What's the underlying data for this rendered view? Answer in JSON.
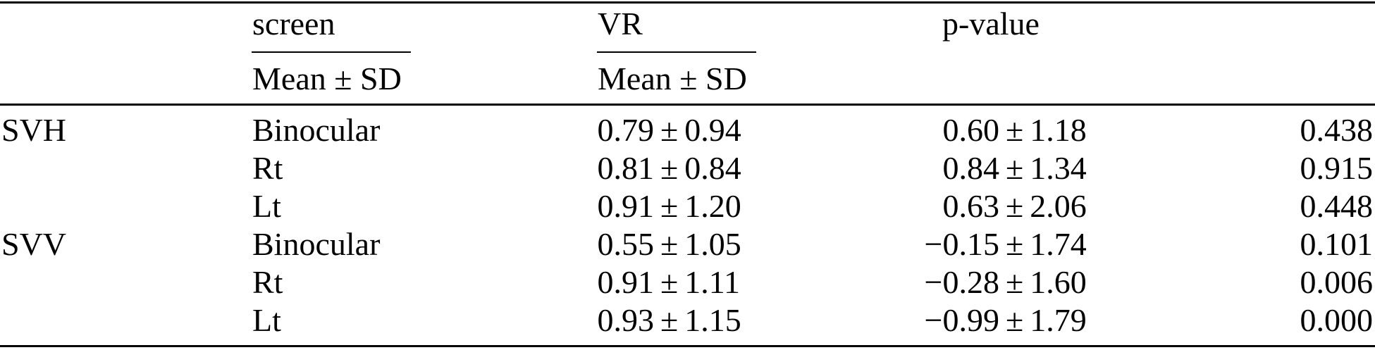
{
  "table": {
    "header": {
      "group1_label": "screen",
      "group1_sub": "Mean ± SD",
      "group2_label": "VR",
      "group2_sub": "Mean ± SD",
      "pvalue_label": "p-value"
    },
    "symbols": {
      "pm": "±"
    },
    "rows": [
      {
        "group": "SVH",
        "condition": "Binocular",
        "screen_mean": "0.79",
        "screen_sd": "0.94",
        "vr_mean": "0.60",
        "vr_sd": "1.18",
        "p": "0.438"
      },
      {
        "group": "",
        "condition": "Rt",
        "screen_mean": "0.81",
        "screen_sd": "0.84",
        "vr_mean": "0.84",
        "vr_sd": "1.34",
        "p": "0.915"
      },
      {
        "group": "",
        "condition": "Lt",
        "screen_mean": "0.91",
        "screen_sd": "1.20",
        "vr_mean": "0.63",
        "vr_sd": "2.06",
        "p": "0.448"
      },
      {
        "group": "SVV",
        "condition": "Binocular",
        "screen_mean": "0.55",
        "screen_sd": "1.05",
        "vr_mean": "−0.15",
        "vr_sd": "1.74",
        "p": "0.101"
      },
      {
        "group": "",
        "condition": "Rt",
        "screen_mean": "0.91",
        "screen_sd": "1.11",
        "vr_mean": "−0.28",
        "vr_sd": "1.60",
        "p": "0.006"
      },
      {
        "group": "",
        "condition": "Lt",
        "screen_mean": "0.93",
        "screen_sd": "1.15",
        "vr_mean": "−0.99",
        "vr_sd": "1.79",
        "p": "0.000"
      }
    ],
    "colors": {
      "text": "#000000",
      "background": "#ffffff",
      "rule": "#000000"
    }
  }
}
